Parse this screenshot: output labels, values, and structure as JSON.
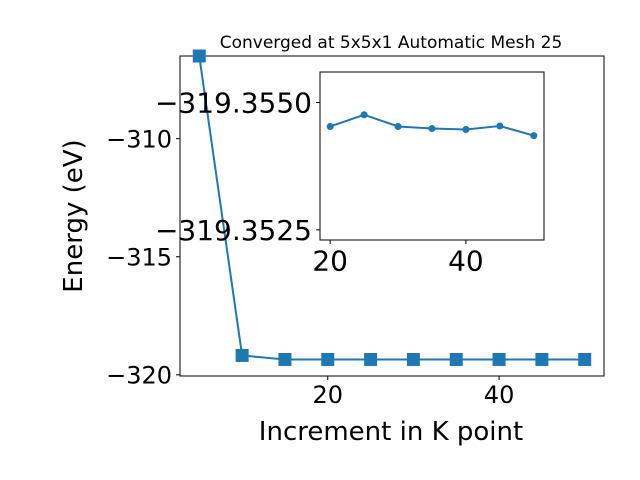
{
  "chart_data": [
    {
      "type": "line",
      "title": "Converged at 5x5x1 Automatic Mesh 25",
      "xlabel": "Increment in K point",
      "ylabel": "Energy (eV)",
      "xlim": [
        2.75,
        52.25
      ],
      "ylim": [
        -320.05,
        -306.5
      ],
      "xticks": [
        20,
        40
      ],
      "yticks": [
        -320,
        -315,
        -310
      ],
      "ytick_labels": [
        "−320",
        "−315",
        "−310"
      ],
      "xtick_labels": [
        "20",
        "40"
      ],
      "marker": "square",
      "color": "#1f77b4",
      "series": [
        {
          "x": [
            5,
            10,
            15,
            20,
            25,
            30,
            35,
            40,
            45,
            50
          ],
          "y": [
            -306.5,
            -319.18,
            -319.35,
            -319.35,
            -319.35,
            -319.35,
            -319.35,
            -319.35,
            -319.35,
            -319.35
          ]
        }
      ]
    },
    {
      "type": "line",
      "title": "",
      "xlabel": "",
      "ylabel": "",
      "xlim": [
        18.5,
        51.5
      ],
      "ylim": [
        -319.3523,
        -319.3556
      ],
      "xticks": [
        20,
        40
      ],
      "yticks": [
        -319.355,
        -319.3525
      ],
      "ytick_labels": [
        "−319.3550",
        "−319.3525"
      ],
      "xtick_labels": [
        "20",
        "40"
      ],
      "marker": "circle",
      "color": "#1f77b4",
      "series": [
        {
          "x": [
            20,
            25,
            30,
            35,
            40,
            45,
            50
          ],
          "y": [
            -319.35453,
            -319.35476,
            -319.35453,
            -319.35449,
            -319.35447,
            -319.35454,
            -319.35435
          ]
        }
      ]
    }
  ]
}
